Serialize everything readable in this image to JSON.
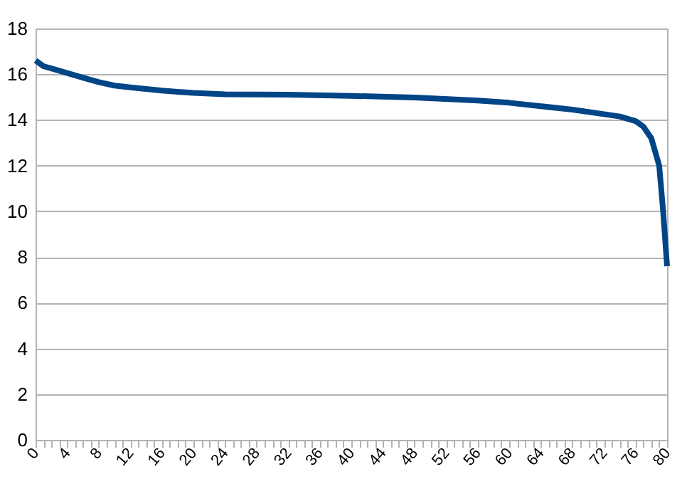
{
  "chart_data": {
    "type": "line",
    "x": [
      0,
      1,
      2,
      4,
      6,
      8,
      10,
      12,
      16,
      20,
      24,
      32,
      40,
      48,
      56,
      60,
      64,
      68,
      72,
      74,
      76,
      77,
      78,
      79,
      79.5,
      80
    ],
    "series": [
      {
        "color": "#004586",
        "values": [
          16.6,
          16.35,
          16.25,
          16.05,
          15.85,
          15.65,
          15.5,
          15.42,
          15.28,
          15.18,
          15.12,
          15.1,
          15.05,
          14.98,
          14.85,
          14.75,
          14.6,
          14.45,
          14.25,
          14.15,
          13.95,
          13.7,
          13.2,
          12.0,
          10.0,
          7.6
        ]
      }
    ],
    "xlim": [
      0,
      80
    ],
    "xticks": [
      0,
      {
        "value": 1,
        "label": null
      },
      {
        "value": 2,
        "label": null
      },
      {
        "value": 3,
        "label": null
      },
      4,
      {
        "value": 5,
        "label": null
      },
      {
        "value": 6,
        "label": null
      },
      {
        "value": 7,
        "label": null
      },
      8,
      {
        "value": 9,
        "label": null
      },
      {
        "value": 10,
        "label": null
      },
      {
        "value": 11,
        "label": null
      },
      12,
      {
        "value": 13,
        "label": null
      },
      {
        "value": 14,
        "label": null
      },
      {
        "value": 15,
        "label": null
      },
      16,
      {
        "value": 17,
        "label": null
      },
      {
        "value": 18,
        "label": null
      },
      {
        "value": 19,
        "label": null
      },
      20,
      {
        "value": 21,
        "label": null
      },
      {
        "value": 22,
        "label": null
      },
      {
        "value": 23,
        "label": null
      },
      24,
      {
        "value": 25,
        "label": null
      },
      {
        "value": 26,
        "label": null
      },
      {
        "value": 27,
        "label": null
      },
      28,
      {
        "value": 29,
        "label": null
      },
      {
        "value": 30,
        "label": null
      },
      {
        "value": 31,
        "label": null
      },
      32,
      {
        "value": 33,
        "label": null
      },
      {
        "value": 34,
        "label": null
      },
      {
        "value": 35,
        "label": null
      },
      36,
      {
        "value": 37,
        "label": null
      },
      {
        "value": 38,
        "label": null
      },
      {
        "value": 39,
        "label": null
      },
      40,
      {
        "value": 41,
        "label": null
      },
      {
        "value": 42,
        "label": null
      },
      {
        "value": 43,
        "label": null
      },
      44,
      {
        "value": 45,
        "label": null
      },
      {
        "value": 46,
        "label": null
      },
      {
        "value": 47,
        "label": null
      },
      48,
      {
        "value": 49,
        "label": null
      },
      {
        "value": 50,
        "label": null
      },
      {
        "value": 51,
        "label": null
      },
      52,
      {
        "value": 53,
        "label": null
      },
      {
        "value": 54,
        "label": null
      },
      {
        "value": 55,
        "label": null
      },
      56,
      {
        "value": 57,
        "label": null
      },
      {
        "value": 58,
        "label": null
      },
      {
        "value": 59,
        "label": null
      },
      60,
      {
        "value": 61,
        "label": null
      },
      {
        "value": 62,
        "label": null
      },
      {
        "value": 63,
        "label": null
      },
      64,
      {
        "value": 65,
        "label": null
      },
      {
        "value": 66,
        "label": null
      },
      {
        "value": 67,
        "label": null
      },
      68,
      {
        "value": 69,
        "label": null
      },
      {
        "value": 70,
        "label": null
      },
      {
        "value": 71,
        "label": null
      },
      72,
      {
        "value": 73,
        "label": null
      },
      {
        "value": 74,
        "label": null
      },
      {
        "value": 75,
        "label": null
      },
      76,
      {
        "value": 77,
        "label": null
      },
      {
        "value": 78,
        "label": null
      },
      {
        "value": 79,
        "label": null
      },
      80
    ],
    "ylim": [
      0,
      18
    ],
    "yticks": [
      0,
      2,
      4,
      6,
      8,
      10,
      12,
      14,
      16,
      18
    ],
    "grid": "y",
    "marker": "none",
    "line_style": "solid"
  }
}
